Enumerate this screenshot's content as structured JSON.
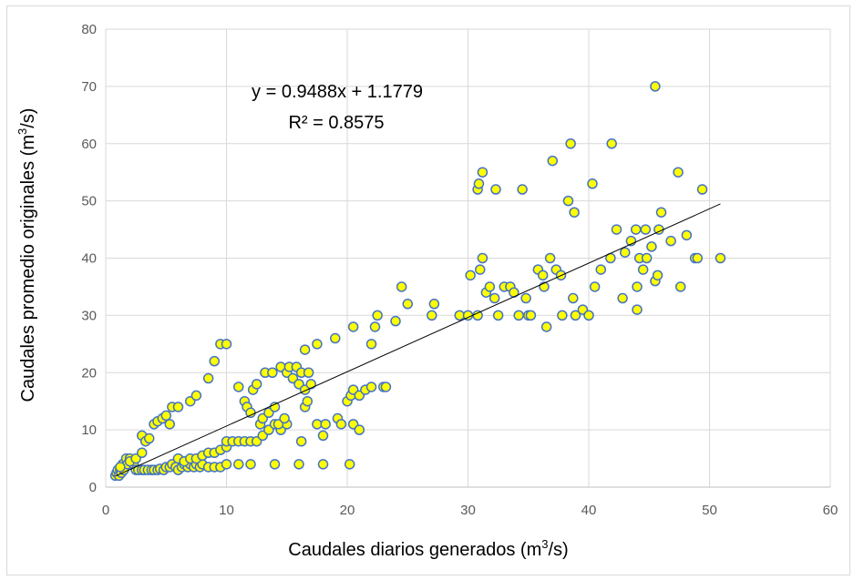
{
  "chart_data": {
    "type": "scatter",
    "title": "",
    "xlabel": {
      "prefix": "Caudales diarios generados  (m",
      "sup": "3",
      "suffix": "/s)"
    },
    "ylabel": {
      "prefix": "Caudales promedio  originales (m",
      "sup": "3",
      "suffix": "/s)"
    },
    "xlim": [
      0,
      60
    ],
    "ylim": [
      0,
      80
    ],
    "x_ticks": [
      0,
      10,
      20,
      30,
      40,
      50,
      60
    ],
    "y_ticks": [
      0,
      10,
      20,
      30,
      40,
      50,
      60,
      70,
      80
    ],
    "grid": "major both axes",
    "marker": {
      "fill": "#ffff00",
      "stroke": "#4472c4"
    },
    "trendline": {
      "type": "linear",
      "slope": 0.9488,
      "intercept": 1.1779,
      "x_range": [
        0.8,
        50.9
      ],
      "color": "#000000",
      "equation_label": "y = 0.9488x + 1.1779",
      "r2_label": "R² = 0.8575"
    },
    "points": [
      [
        0.8,
        2
      ],
      [
        0.9,
        2.5
      ],
      [
        1,
        3
      ],
      [
        1.1,
        2
      ],
      [
        1.2,
        3
      ],
      [
        1.3,
        2.5
      ],
      [
        1.4,
        4
      ],
      [
        1.5,
        3
      ],
      [
        1.7,
        5
      ],
      [
        1.8,
        4
      ],
      [
        2,
        5
      ],
      [
        2.3,
        4
      ],
      [
        2.5,
        3
      ],
      [
        2.7,
        3
      ],
      [
        3,
        3
      ],
      [
        3.2,
        3
      ],
      [
        3.5,
        3
      ],
      [
        3.8,
        3
      ],
      [
        4,
        3
      ],
      [
        4.3,
        3
      ],
      [
        4.5,
        3.2
      ],
      [
        4.8,
        3
      ],
      [
        5,
        3.5
      ],
      [
        5.3,
        3.5
      ],
      [
        5.5,
        4
      ],
      [
        5.8,
        3.5
      ],
      [
        6,
        3
      ],
      [
        6.3,
        3.5
      ],
      [
        6.5,
        4
      ],
      [
        6.8,
        3.5
      ],
      [
        7,
        4
      ],
      [
        7.3,
        3.5
      ],
      [
        7.5,
        4
      ],
      [
        7.8,
        3.5
      ],
      [
        8,
        4
      ],
      [
        8.5,
        3.5
      ],
      [
        9,
        3.5
      ],
      [
        9.5,
        3.5
      ],
      [
        10,
        4
      ],
      [
        11,
        4
      ],
      [
        12,
        4
      ],
      [
        14,
        4
      ],
      [
        16,
        4
      ],
      [
        18,
        4
      ],
      [
        20.2,
        4
      ],
      [
        1.2,
        3.5
      ],
      [
        2,
        4.5
      ],
      [
        2.5,
        5
      ],
      [
        3,
        6
      ],
      [
        3,
        9
      ],
      [
        3.3,
        8
      ],
      [
        3.6,
        8.5
      ],
      [
        4,
        11
      ],
      [
        4.3,
        11.5
      ],
      [
        4.7,
        12
      ],
      [
        5,
        12.5
      ],
      [
        5.3,
        11
      ],
      [
        5.5,
        14
      ],
      [
        6,
        14
      ],
      [
        7,
        15
      ],
      [
        7.5,
        16
      ],
      [
        8.5,
        19
      ],
      [
        9,
        22
      ],
      [
        9.5,
        25
      ],
      [
        10,
        25
      ],
      [
        6,
        5
      ],
      [
        6.5,
        4.5
      ],
      [
        7,
        5
      ],
      [
        7.5,
        5
      ],
      [
        8,
        5.5
      ],
      [
        8.5,
        6
      ],
      [
        9,
        6
      ],
      [
        9.5,
        6.5
      ],
      [
        10,
        7
      ],
      [
        10,
        8
      ],
      [
        10.5,
        8
      ],
      [
        11,
        8
      ],
      [
        11.5,
        8
      ],
      [
        12,
        8
      ],
      [
        12.5,
        8
      ],
      [
        13,
        9
      ],
      [
        13.5,
        10
      ],
      [
        14,
        11
      ],
      [
        14.5,
        10
      ],
      [
        15,
        11
      ],
      [
        11,
        17.5
      ],
      [
        11.5,
        15
      ],
      [
        11.7,
        14
      ],
      [
        12,
        13
      ],
      [
        12.2,
        17
      ],
      [
        12.5,
        18
      ],
      [
        12.8,
        11
      ],
      [
        13,
        12
      ],
      [
        13.2,
        20
      ],
      [
        13.5,
        13
      ],
      [
        13.8,
        20
      ],
      [
        14,
        14
      ],
      [
        14.3,
        11
      ],
      [
        14.5,
        21
      ],
      [
        14.8,
        12
      ],
      [
        15,
        20
      ],
      [
        15.2,
        21
      ],
      [
        15.5,
        19
      ],
      [
        15.8,
        21
      ],
      [
        16,
        18
      ],
      [
        16.2,
        20
      ],
      [
        16.5,
        17
      ],
      [
        16.8,
        20
      ],
      [
        17,
        18
      ],
      [
        16.2,
        8
      ],
      [
        16.5,
        14
      ],
      [
        16.7,
        15
      ],
      [
        16.5,
        24
      ],
      [
        17.5,
        25
      ],
      [
        17.5,
        11
      ],
      [
        18,
        9
      ],
      [
        18.2,
        11
      ],
      [
        19,
        26
      ],
      [
        19.2,
        12
      ],
      [
        19.5,
        11
      ],
      [
        20,
        15
      ],
      [
        20.3,
        16
      ],
      [
        20.5,
        17
      ],
      [
        20.5,
        11
      ],
      [
        21,
        10
      ],
      [
        20.5,
        28
      ],
      [
        21,
        16
      ],
      [
        21.5,
        17
      ],
      [
        22,
        17.5
      ],
      [
        22,
        25
      ],
      [
        22.3,
        28
      ],
      [
        22.5,
        30
      ],
      [
        23,
        17.5
      ],
      [
        23.2,
        17.5
      ],
      [
        24,
        29
      ],
      [
        24.5,
        35
      ],
      [
        25,
        32
      ],
      [
        27,
        30
      ],
      [
        27.2,
        32
      ],
      [
        29.3,
        30
      ],
      [
        30,
        30
      ],
      [
        30.2,
        37
      ],
      [
        30.8,
        30
      ],
      [
        30.8,
        52
      ],
      [
        30.9,
        53
      ],
      [
        31,
        38
      ],
      [
        31.2,
        40
      ],
      [
        31.2,
        55
      ],
      [
        31.5,
        34
      ],
      [
        31.8,
        35
      ],
      [
        32.2,
        33
      ],
      [
        32.3,
        52
      ],
      [
        32.5,
        30
      ],
      [
        33,
        35
      ],
      [
        33.5,
        35
      ],
      [
        33.8,
        34
      ],
      [
        34.2,
        30
      ],
      [
        34.5,
        52
      ],
      [
        34.8,
        33
      ],
      [
        35,
        30
      ],
      [
        35.2,
        30
      ],
      [
        35.8,
        38
      ],
      [
        36.2,
        37
      ],
      [
        36.3,
        35
      ],
      [
        36.5,
        28
      ],
      [
        36.8,
        40
      ],
      [
        37,
        57
      ],
      [
        37.3,
        38
      ],
      [
        37.7,
        37
      ],
      [
        37.8,
        30
      ],
      [
        38.3,
        50
      ],
      [
        38.5,
        60
      ],
      [
        38.7,
        33
      ],
      [
        38.8,
        48
      ],
      [
        38.9,
        30
      ],
      [
        39.5,
        31
      ],
      [
        40,
        30
      ],
      [
        40.3,
        53
      ],
      [
        40.5,
        35
      ],
      [
        41,
        38
      ],
      [
        41.8,
        40
      ],
      [
        41.9,
        60
      ],
      [
        42.3,
        45
      ],
      [
        42.8,
        33
      ],
      [
        43,
        41
      ],
      [
        43.5,
        43
      ],
      [
        43.9,
        45
      ],
      [
        44,
        35
      ],
      [
        44,
        31
      ],
      [
        44.2,
        40
      ],
      [
        44.5,
        38
      ],
      [
        44.7,
        45
      ],
      [
        44.8,
        40
      ],
      [
        45.2,
        42
      ],
      [
        45.5,
        36
      ],
      [
        45.5,
        70
      ],
      [
        45.7,
        37
      ],
      [
        45.8,
        45
      ],
      [
        46,
        48
      ],
      [
        46.8,
        43
      ],
      [
        47.4,
        55
      ],
      [
        47.6,
        35
      ],
      [
        48.1,
        44
      ],
      [
        48.8,
        40
      ],
      [
        49,
        40
      ],
      [
        49.4,
        52
      ],
      [
        50.9,
        40
      ]
    ]
  }
}
